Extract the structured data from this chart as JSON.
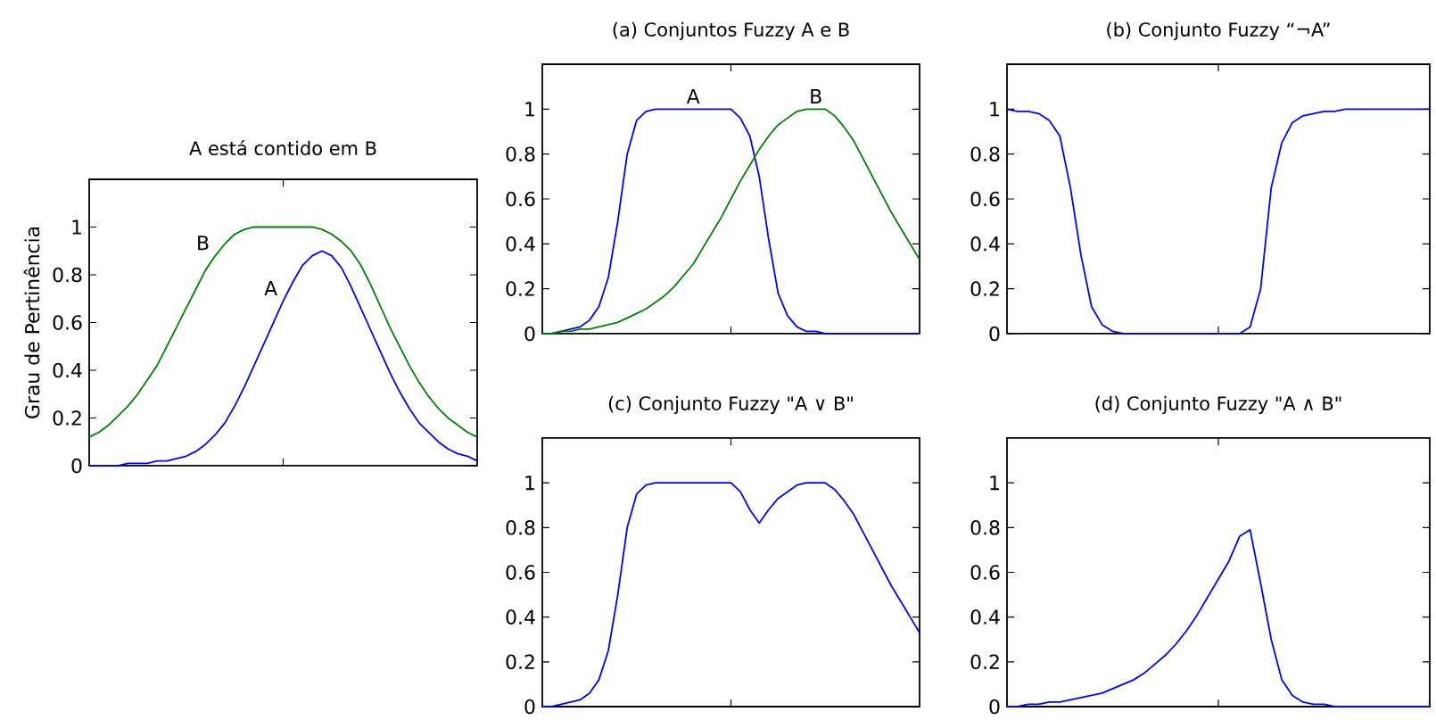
{
  "chart_data": [
    {
      "type": "line",
      "title": "A está contido em B",
      "ylabel": "Grau de Pertinência",
      "categories": [
        null,
        null,
        null,
        null,
        null,
        null,
        null,
        null,
        null,
        null,
        null,
        null,
        null,
        null,
        null,
        null,
        null,
        null,
        null,
        null,
        null,
        null,
        null,
        null,
        null,
        null,
        null,
        null,
        null,
        null,
        null,
        null,
        null,
        null,
        null,
        null,
        null,
        null,
        null,
        null,
        null
      ],
      "ylim": [
        0,
        1.2
      ],
      "yticks": [
        0,
        0.2,
        0.4,
        0.6,
        0.8,
        1
      ],
      "tick_labels": "y",
      "series": [
        {
          "name": "A",
          "color": "#0000ff",
          "values": [
            0,
            0,
            0,
            0,
            0.01,
            0.01,
            0.01,
            0.02,
            0.02,
            0.03,
            0.04,
            0.06,
            0.09,
            0.13,
            0.18,
            0.25,
            0.33,
            0.42,
            0.51,
            0.6,
            0.69,
            0.77,
            0.84,
            0.88,
            0.9,
            0.88,
            0.83,
            0.75,
            0.66,
            0.57,
            0.48,
            0.39,
            0.31,
            0.24,
            0.18,
            0.14,
            0.1,
            0.07,
            0.05,
            0.04,
            0.02
          ]
        },
        {
          "name": "B",
          "color": "#008000",
          "values": [
            0.12,
            0.14,
            0.17,
            0.21,
            0.25,
            0.3,
            0.36,
            0.42,
            0.5,
            0.58,
            0.66,
            0.74,
            0.82,
            0.88,
            0.93,
            0.97,
            0.99,
            1,
            1,
            1,
            1,
            1,
            1,
            1,
            0.99,
            0.97,
            0.94,
            0.9,
            0.84,
            0.76,
            0.67,
            0.58,
            0.5,
            0.42,
            0.35,
            0.29,
            0.24,
            0.2,
            0.17,
            0.14,
            0.12
          ]
        }
      ]
    },
    {
      "type": "line",
      "title": "(a) Conjuntos Fuzzy A e B",
      "categories": [
        null,
        null,
        null,
        null,
        null,
        null,
        null,
        null,
        null,
        null,
        null,
        null,
        null,
        null,
        null,
        null,
        null,
        null,
        null,
        null,
        null,
        null,
        null,
        null,
        null,
        null,
        null,
        null,
        null,
        null,
        null,
        null,
        null,
        null,
        null,
        null,
        null,
        null,
        null,
        null,
        null
      ],
      "ylim": [
        0,
        1.2
      ],
      "yticks": [
        0,
        0.2,
        0.4,
        0.6,
        0.8,
        1
      ],
      "tick_labels": "y",
      "series": [
        {
          "name": "A",
          "color": "#0000ff",
          "values": [
            0,
            0,
            0.01,
            0.02,
            0.03,
            0.06,
            0.12,
            0.25,
            0.5,
            0.8,
            0.95,
            0.99,
            1,
            1,
            1,
            1,
            1,
            1,
            1,
            1,
            1,
            0.96,
            0.88,
            0.7,
            0.42,
            0.18,
            0.08,
            0.03,
            0.01,
            0.01,
            0,
            0,
            0,
            0,
            0,
            0,
            0,
            0,
            0,
            0,
            0
          ]
        },
        {
          "name": "B",
          "color": "#008000",
          "values": [
            0,
            0,
            0.01,
            0.01,
            0.02,
            0.02,
            0.03,
            0.04,
            0.05,
            0.07,
            0.09,
            0.11,
            0.14,
            0.17,
            0.21,
            0.26,
            0.31,
            0.38,
            0.45,
            0.52,
            0.6,
            0.68,
            0.75,
            0.82,
            0.88,
            0.93,
            0.96,
            0.99,
            1,
            1,
            1,
            0.97,
            0.92,
            0.86,
            0.78,
            0.7,
            0.62,
            0.54,
            0.47,
            0.4,
            0.33
          ]
        }
      ]
    },
    {
      "type": "line",
      "title": "(b) Conjunto Fuzzy “¬A”",
      "categories": [
        null,
        null,
        null,
        null,
        null,
        null,
        null,
        null,
        null,
        null,
        null,
        null,
        null,
        null,
        null,
        null,
        null,
        null,
        null,
        null,
        null,
        null,
        null,
        null,
        null,
        null,
        null,
        null,
        null,
        null,
        null,
        null,
        null,
        null,
        null,
        null,
        null,
        null,
        null,
        null,
        null
      ],
      "ylim": [
        0,
        1.2
      ],
      "yticks": [
        0,
        0.2,
        0.4,
        0.6,
        0.8,
        1
      ],
      "tick_labels": "y",
      "series": [
        {
          "color": "#0000ff",
          "values": [
            1,
            0.99,
            0.99,
            0.98,
            0.95,
            0.88,
            0.65,
            0.35,
            0.12,
            0.04,
            0.01,
            0,
            0,
            0,
            0,
            0,
            0,
            0,
            0,
            0,
            0,
            0,
            0,
            0.03,
            0.2,
            0.65,
            0.85,
            0.94,
            0.97,
            0.98,
            0.99,
            0.99,
            1,
            1,
            1,
            1,
            1,
            1,
            1,
            1,
            1
          ]
        }
      ]
    },
    {
      "type": "line",
      "title": "(c) Conjunto Fuzzy \"A ∨ B\"",
      "categories": [
        null,
        null,
        null,
        null,
        null,
        null,
        null,
        null,
        null,
        null,
        null,
        null,
        null,
        null,
        null,
        null,
        null,
        null,
        null,
        null,
        null,
        null,
        null,
        null,
        null,
        null,
        null,
        null,
        null,
        null,
        null,
        null,
        null,
        null,
        null,
        null,
        null,
        null,
        null,
        null,
        null
      ],
      "ylim": [
        0,
        1.2
      ],
      "yticks": [
        0,
        0.2,
        0.4,
        0.6,
        0.8,
        1
      ],
      "tick_labels": "y",
      "series": [
        {
          "color": "#0000ff",
          "values": [
            0,
            0,
            0.01,
            0.02,
            0.03,
            0.06,
            0.12,
            0.25,
            0.5,
            0.8,
            0.95,
            0.99,
            1,
            1,
            1,
            1,
            1,
            1,
            1,
            1,
            1,
            0.96,
            0.88,
            0.82,
            0.88,
            0.93,
            0.96,
            0.99,
            1,
            1,
            1,
            0.97,
            0.92,
            0.86,
            0.78,
            0.7,
            0.62,
            0.54,
            0.47,
            0.4,
            0.33
          ]
        }
      ]
    },
    {
      "type": "line",
      "title": "(d) Conjunto Fuzzy \"A ∧ B\"",
      "categories": [
        null,
        null,
        null,
        null,
        null,
        null,
        null,
        null,
        null,
        null,
        null,
        null,
        null,
        null,
        null,
        null,
        null,
        null,
        null,
        null,
        null,
        null,
        null,
        null,
        null,
        null,
        null,
        null,
        null,
        null,
        null,
        null,
        null,
        null,
        null,
        null,
        null,
        null,
        null,
        null,
        null
      ],
      "ylim": [
        0,
        1.2
      ],
      "yticks": [
        0,
        0.2,
        0.4,
        0.6,
        0.8,
        1
      ],
      "tick_labels": "y",
      "series": [
        {
          "color": "#0000ff",
          "values": [
            0,
            0,
            0.01,
            0.01,
            0.02,
            0.02,
            0.03,
            0.04,
            0.05,
            0.06,
            0.08,
            0.1,
            0.12,
            0.15,
            0.19,
            0.23,
            0.28,
            0.34,
            0.41,
            0.49,
            0.57,
            0.65,
            0.76,
            0.79,
            0.55,
            0.3,
            0.12,
            0.05,
            0.02,
            0.01,
            0.01,
            0,
            0,
            0,
            0,
            0,
            0,
            0,
            0,
            0,
            0
          ]
        }
      ]
    }
  ]
}
